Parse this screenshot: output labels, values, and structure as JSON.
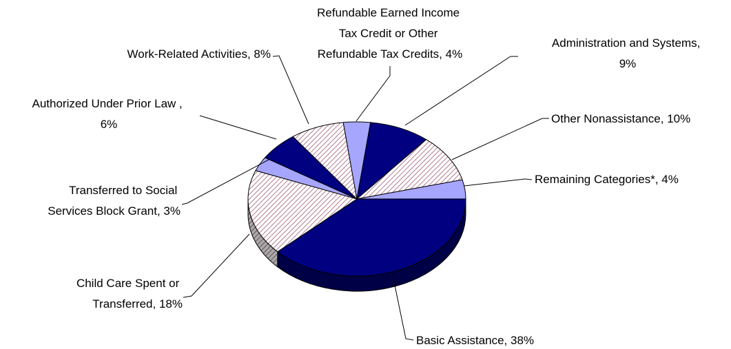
{
  "chart_data": {
    "type": "pie",
    "title": "",
    "slices": [
      {
        "label": "Basic Assistance, 38%",
        "value": 38,
        "color": "#000080",
        "pattern": "solid"
      },
      {
        "label": "Child Care Spent or Transferred, 18%",
        "value": 18,
        "color": "#c9a0b0",
        "pattern": "hatch"
      },
      {
        "label": "Transferred to Social Services Block Grant, 3%",
        "value": 3,
        "color": "#a6a6ff",
        "pattern": "solid"
      },
      {
        "label": "Authorized Under Prior Law , 6%",
        "value": 6,
        "color": "#000080",
        "pattern": "solid"
      },
      {
        "label": "Work-Related Activities, 8%",
        "value": 8,
        "color": "#c9a0b0",
        "pattern": "hatch"
      },
      {
        "label": "Refundable Earned Income Tax Credit or Other Refundable Tax Credits, 4%",
        "value": 4,
        "color": "#a6a6ff",
        "pattern": "solid"
      },
      {
        "label": "Administration and Systems, 9%",
        "value": 9,
        "color": "#000080",
        "pattern": "solid"
      },
      {
        "label": "Other Nonassistance, 10%",
        "value": 10,
        "color": "#c9a0b0",
        "pattern": "hatch"
      },
      {
        "label": "Remaining Categories*, 4%",
        "value": 4,
        "color": "#a6a6ff",
        "pattern": "solid"
      }
    ],
    "labels": {
      "basic": [
        "Basic Assistance, 38%"
      ],
      "child": [
        "Child Care Spent or",
        "Transferred, 18%"
      ],
      "ssbg": [
        "Transferred to Social",
        "Services Block Grant, 3%"
      ],
      "prior": [
        "Authorized Under Prior Law ,",
        "6%"
      ],
      "work": [
        "Work-Related Activities, 8%"
      ],
      "eitc": [
        "Refundable Earned Income",
        "Tax Credit or Other",
        "Refundable Tax Credits, 4%"
      ],
      "admin": [
        "Administration and Systems,",
        "9%"
      ],
      "other": [
        "Other Nonassistance, 10%"
      ],
      "remaining": [
        "Remaining Categories*, 4%"
      ]
    }
  }
}
